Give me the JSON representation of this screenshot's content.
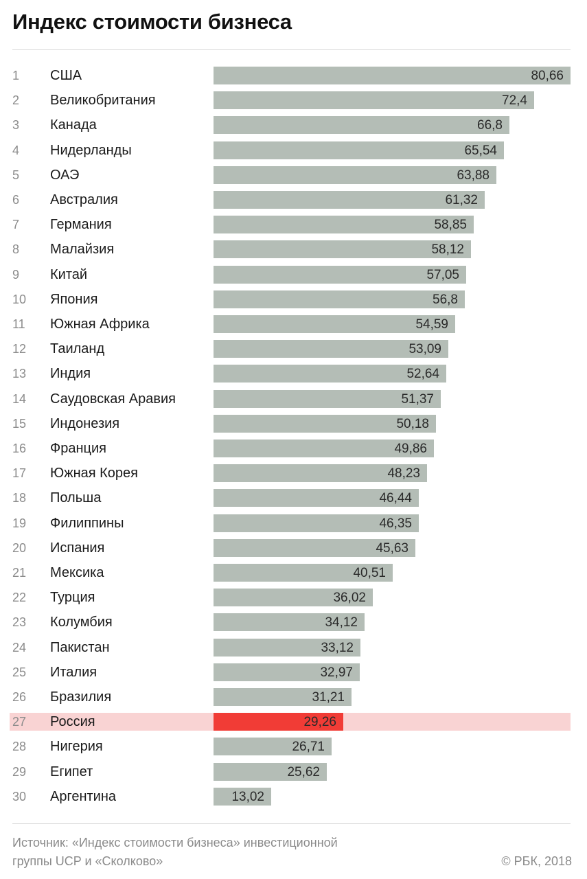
{
  "title": "Индекс стоимости бизнеса",
  "footer": {
    "source_line1": "Источник: «Индекс стоимости бизнеса» инвестиционной",
    "source_line2": "группы UCP и «Сколково»",
    "copyright": "© РБК, 2018"
  },
  "colors": {
    "bar": "#b4bdb6",
    "highlight_bar": "#f13c36",
    "highlight_row": "#f9d3d3"
  },
  "chart_data": {
    "type": "bar",
    "orientation": "horizontal",
    "title": "Индекс стоимости бизнеса",
    "xlim": [
      0,
      80.66
    ],
    "highlight": "Россия",
    "rows": [
      {
        "rank": "1",
        "country": "США",
        "value": 80.66,
        "label": "80,66"
      },
      {
        "rank": "2",
        "country": "Великобритания",
        "value": 72.4,
        "label": "72,4"
      },
      {
        "rank": "3",
        "country": "Канада",
        "value": 66.8,
        "label": "66,8"
      },
      {
        "rank": "4",
        "country": "Нидерланды",
        "value": 65.54,
        "label": "65,54"
      },
      {
        "rank": "5",
        "country": "ОАЭ",
        "value": 63.88,
        "label": "63,88"
      },
      {
        "rank": "6",
        "country": "Австралия",
        "value": 61.32,
        "label": "61,32"
      },
      {
        "rank": "7",
        "country": "Германия",
        "value": 58.85,
        "label": "58,85"
      },
      {
        "rank": "8",
        "country": "Малайзия",
        "value": 58.12,
        "label": "58,12"
      },
      {
        "rank": "9",
        "country": "Китай",
        "value": 57.05,
        "label": "57,05"
      },
      {
        "rank": "10",
        "country": "Япония",
        "value": 56.8,
        "label": "56,8"
      },
      {
        "rank": "11",
        "country": "Южная Африка",
        "value": 54.59,
        "label": "54,59"
      },
      {
        "rank": "12",
        "country": "Таиланд",
        "value": 53.09,
        "label": "53,09"
      },
      {
        "rank": "13",
        "country": "Индия",
        "value": 52.64,
        "label": "52,64"
      },
      {
        "rank": "14",
        "country": "Саудовская Аравия",
        "value": 51.37,
        "label": "51,37"
      },
      {
        "rank": "15",
        "country": "Индонезия",
        "value": 50.18,
        "label": "50,18"
      },
      {
        "rank": "16",
        "country": "Франция",
        "value": 49.86,
        "label": "49,86"
      },
      {
        "rank": "17",
        "country": "Южная Корея",
        "value": 48.23,
        "label": "48,23"
      },
      {
        "rank": "18",
        "country": "Польша",
        "value": 46.44,
        "label": "46,44"
      },
      {
        "rank": "19",
        "country": "Филиппины",
        "value": 46.35,
        "label": "46,35"
      },
      {
        "rank": "20",
        "country": "Испания",
        "value": 45.63,
        "label": "45,63"
      },
      {
        "rank": "21",
        "country": "Мексика",
        "value": 40.51,
        "label": "40,51"
      },
      {
        "rank": "22",
        "country": "Турция",
        "value": 36.02,
        "label": "36,02"
      },
      {
        "rank": "23",
        "country": "Колумбия",
        "value": 34.12,
        "label": "34,12"
      },
      {
        "rank": "24",
        "country": "Пакистан",
        "value": 33.12,
        "label": "33,12"
      },
      {
        "rank": "25",
        "country": "Италия",
        "value": 32.97,
        "label": "32,97"
      },
      {
        "rank": "26",
        "country": "Бразилия",
        "value": 31.21,
        "label": "31,21"
      },
      {
        "rank": "27",
        "country": "Россия",
        "value": 29.26,
        "label": "29,26"
      },
      {
        "rank": "28",
        "country": "Нигерия",
        "value": 26.71,
        "label": "26,71"
      },
      {
        "rank": "29",
        "country": "Египет",
        "value": 25.62,
        "label": "25,62"
      },
      {
        "rank": "30",
        "country": "Аргентина",
        "value": 13.02,
        "label": "13,02"
      }
    ]
  }
}
